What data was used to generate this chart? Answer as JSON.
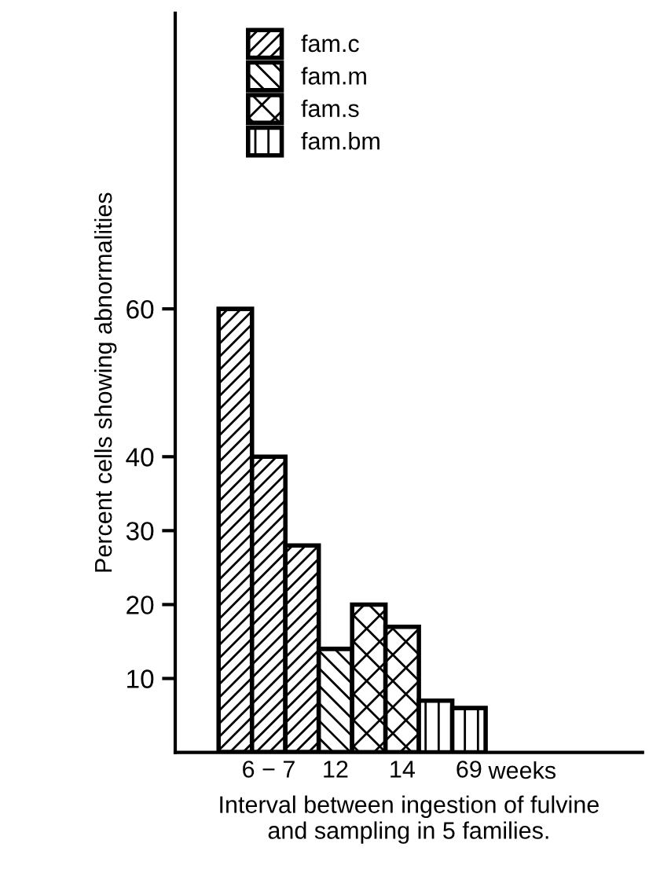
{
  "chart_data": {
    "type": "bar",
    "stacked": false,
    "categories": [
      null,
      "6 − 7",
      null,
      "12",
      null,
      "14",
      null,
      "69"
    ],
    "series": [
      {
        "name": "fam.c",
        "color": "#000000",
        "values": [
          60,
          40,
          28,
          null,
          null,
          null,
          null,
          null
        ]
      },
      {
        "name": "fam.m",
        "color": "#000000",
        "values": [
          null,
          null,
          null,
          14,
          null,
          null,
          null,
          null
        ]
      },
      {
        "name": "fam.s",
        "color": "#000000",
        "values": [
          null,
          null,
          null,
          null,
          20,
          17,
          null,
          null
        ]
      },
      {
        "name": "fam.bm",
        "color": "#000000",
        "values": [
          null,
          null,
          null,
          null,
          null,
          null,
          7,
          6
        ]
      }
    ],
    "ylabel": "Percent cells showing abnormalities",
    "xlabel": "Interval between ingestion of fulvine\nand sampling in 5 families.",
    "annotations": [
      "weeks"
    ],
    "ylim": [
      0,
      100
    ],
    "yticks": [
      10,
      20,
      30,
      40,
      60
    ],
    "grid": false,
    "legend": "top left"
  }
}
